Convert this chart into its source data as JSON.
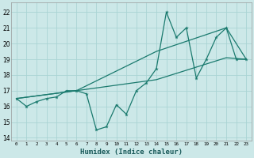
{
  "xlabel": "Humidex (Indice chaleur)",
  "bg_color": "#cce8e8",
  "grid_color": "#aad4d4",
  "line_color": "#1a7a6e",
  "xlim": [
    -0.5,
    23.5
  ],
  "ylim": [
    13.8,
    22.6
  ],
  "xticks": [
    0,
    1,
    2,
    3,
    4,
    5,
    6,
    7,
    8,
    9,
    10,
    11,
    12,
    13,
    14,
    15,
    16,
    17,
    18,
    19,
    20,
    21,
    22,
    23
  ],
  "yticks": [
    14,
    15,
    16,
    17,
    18,
    19,
    20,
    21,
    22
  ],
  "line1_x": [
    0,
    1,
    2,
    3,
    4,
    5,
    6,
    7,
    8,
    9,
    10,
    11,
    12,
    13,
    14,
    15,
    16,
    17,
    18,
    19,
    20,
    21,
    22,
    23
  ],
  "line1_y": [
    16.5,
    16.0,
    16.3,
    16.5,
    16.6,
    17.0,
    17.0,
    16.8,
    14.5,
    14.7,
    16.1,
    15.5,
    17.0,
    17.5,
    18.4,
    22.0,
    20.4,
    21.0,
    17.8,
    19.0,
    20.4,
    21.0,
    19.0,
    19.0
  ],
  "line2_x": [
    0,
    6,
    14,
    21,
    23
  ],
  "line2_y": [
    16.5,
    17.0,
    19.5,
    21.0,
    19.0
  ],
  "line3_x": [
    0,
    6,
    14,
    21,
    23
  ],
  "line3_y": [
    16.5,
    17.0,
    17.7,
    19.1,
    19.0
  ]
}
